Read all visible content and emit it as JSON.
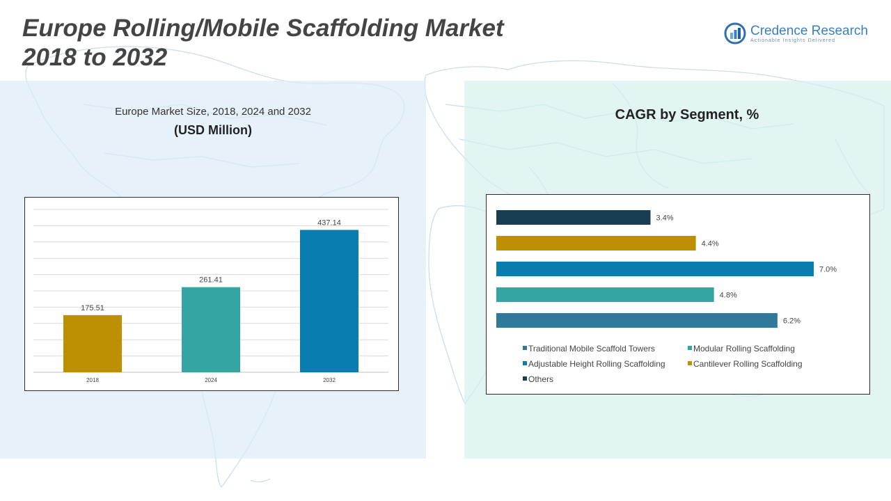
{
  "title": {
    "line1": "Europe Rolling/Mobile Scaffolding Market",
    "line2": "2018 to 2032"
  },
  "logo": {
    "name": "Credence Research",
    "tagline": "Actionable Insights Delivered"
  },
  "left_panel": {
    "subtitle": "Europe Market Size, 2018, 2024 and 2032",
    "unit": "(USD Million)"
  },
  "right_panel": {
    "title": "CAGR by Segment, %"
  },
  "colors": {
    "gold": "#BE8F00",
    "teal": "#35A5A4",
    "blue": "#0A7DB0",
    "steel": "#2F7A9B",
    "navy": "#193E52"
  },
  "chart_data": [
    {
      "type": "bar",
      "categories": [
        "2018",
        "2024",
        "2032"
      ],
      "values": [
        175.51,
        261.41,
        437.14
      ],
      "data_labels": [
        "175.51",
        "261.41",
        "437.14"
      ],
      "bar_colors": [
        "#BE8F00",
        "#35A5A4",
        "#0A7DB0"
      ],
      "ylim": [
        0,
        500
      ],
      "grid": true
    },
    {
      "type": "bar",
      "orientation": "horizontal",
      "categories": [
        "Others",
        "Cantilever Rolling Scaffolding",
        "Adjustable Height Rolling Scaffolding",
        "Modular Rolling Scaffolding",
        "Traditional Mobile Scaffold Towers"
      ],
      "values": [
        3.4,
        4.4,
        7.0,
        4.8,
        6.2
      ],
      "data_labels": [
        "3.4%",
        "4.4%",
        "7.0%",
        "4.8%",
        "6.2%"
      ],
      "bar_colors": [
        "#193E52",
        "#BE8F00",
        "#0A7DB0",
        "#35A5A4",
        "#2F7A9B"
      ],
      "xlim": [
        0,
        7.0
      ],
      "grid": false,
      "legend": {
        "position": "bottom",
        "items": [
          {
            "label": "Traditional Mobile Scaffold Towers",
            "color": "#2F7A9B"
          },
          {
            "label": "Modular Rolling Scaffolding",
            "color": "#35A5A4"
          },
          {
            "label": "Adjustable Height Rolling Scaffolding",
            "color": "#0A7DB0"
          },
          {
            "label": "Cantilever Rolling Scaffolding",
            "color": "#BE8F00"
          },
          {
            "label": "Others",
            "color": "#193E52"
          }
        ]
      }
    }
  ]
}
